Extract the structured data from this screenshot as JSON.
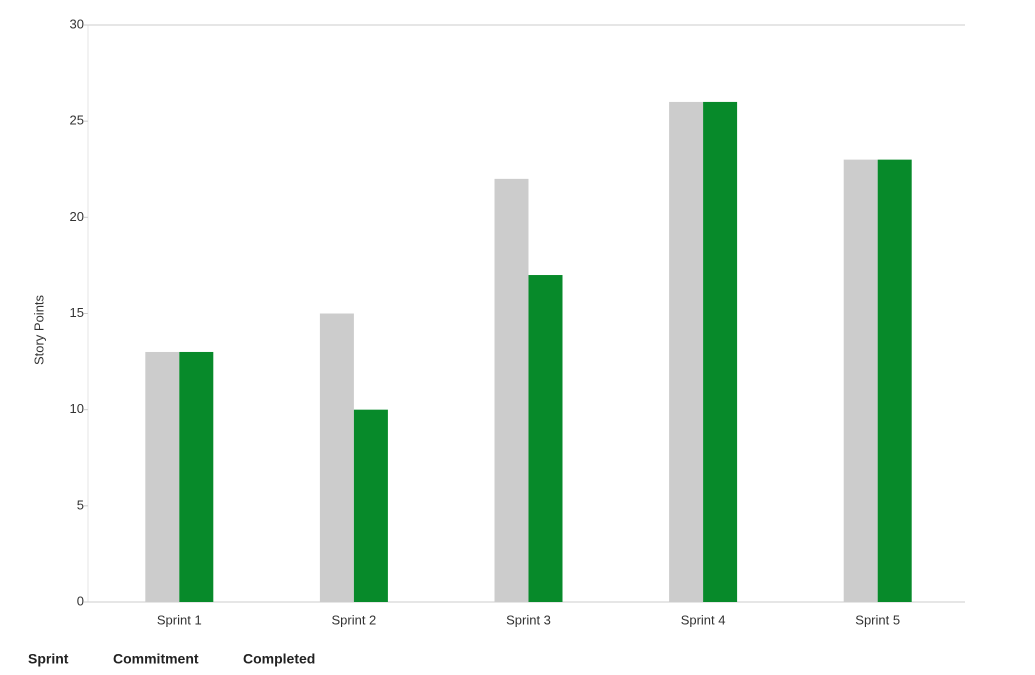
{
  "chart_data": {
    "type": "bar",
    "y_label": "Story Points",
    "x_label": "Sprint",
    "categories": [
      "Sprint 1",
      "Sprint 2",
      "Sprint 3",
      "Sprint 4",
      "Sprint 5"
    ],
    "series": [
      {
        "name": "Commitment",
        "color": "#cccccc",
        "values": [
          13,
          15,
          22,
          26,
          23
        ]
      },
      {
        "name": "Completed",
        "color": "#078a2a",
        "values": [
          13,
          10,
          17,
          26,
          23
        ]
      }
    ],
    "ylim": [
      0,
      30
    ],
    "yticks": [
      0,
      5,
      10,
      15,
      20,
      25,
      30
    ],
    "grid": false
  }
}
